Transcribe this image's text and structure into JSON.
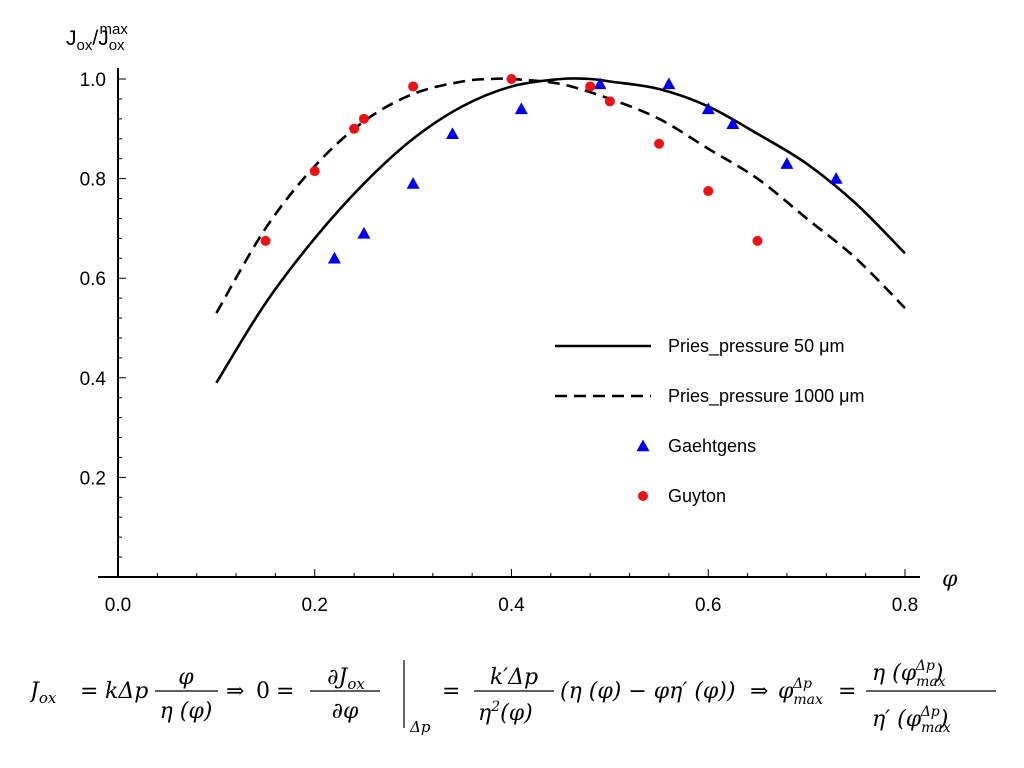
{
  "chart_data": {
    "type": "scatter",
    "ylabel": "J_ox/J_ox^max",
    "ylabel_main": "J",
    "ylabel_sub1": "ox",
    "ylabel_slash": "/",
    "ylabel_J2": "J",
    "ylabel_sub2": "ox",
    "ylabel_sup2": "max",
    "xlabel": "φ",
    "xlim": [
      0.0,
      0.8
    ],
    "ylim": [
      0.0,
      1.0
    ],
    "x_ticks": [
      "0.0",
      "0.2",
      "0.4",
      "0.6",
      "0.8"
    ],
    "y_ticks": [
      "0.2",
      "0.4",
      "0.6",
      "0.8",
      "1.0"
    ],
    "legend_position": "right",
    "series": [
      {
        "name": "Pries_pressure 50 μm",
        "style": "solid-line",
        "color": "#000000",
        "x": [
          0.1,
          0.15,
          0.2,
          0.25,
          0.3,
          0.35,
          0.4,
          0.45,
          0.48,
          0.5,
          0.55,
          0.6,
          0.65,
          0.7,
          0.75,
          0.8
        ],
        "y": [
          0.39,
          0.55,
          0.68,
          0.79,
          0.88,
          0.945,
          0.985,
          1.0,
          1.0,
          0.995,
          0.98,
          0.945,
          0.89,
          0.83,
          0.75,
          0.65
        ]
      },
      {
        "name": "Pries_pressure 1000 μm",
        "style": "dashed-line",
        "color": "#000000",
        "x": [
          0.1,
          0.15,
          0.2,
          0.25,
          0.3,
          0.35,
          0.38,
          0.4,
          0.45,
          0.5,
          0.55,
          0.6,
          0.65,
          0.7,
          0.75,
          0.8
        ],
        "y": [
          0.53,
          0.7,
          0.825,
          0.915,
          0.97,
          0.995,
          1.0,
          1.0,
          0.99,
          0.96,
          0.92,
          0.86,
          0.8,
          0.72,
          0.64,
          0.54
        ]
      },
      {
        "name": "Gaehtgens",
        "style": "triangle-markers",
        "color": "#0000ee",
        "x": [
          0.22,
          0.25,
          0.3,
          0.34,
          0.41,
          0.49,
          0.56,
          0.6,
          0.625,
          0.68,
          0.73
        ],
        "y": [
          0.64,
          0.69,
          0.79,
          0.89,
          0.94,
          0.99,
          0.99,
          0.94,
          0.91,
          0.83,
          0.8
        ]
      },
      {
        "name": "Guyton",
        "style": "circle-markers",
        "color": "#ee1111",
        "x": [
          0.15,
          0.2,
          0.24,
          0.25,
          0.3,
          0.4,
          0.48,
          0.5,
          0.55,
          0.6,
          0.65
        ],
        "y": [
          0.675,
          0.815,
          0.9,
          0.92,
          0.985,
          1.0,
          0.985,
          0.955,
          0.87,
          0.775,
          0.675
        ]
      }
    ]
  },
  "legend": [
    {
      "label": "Pries_pressure 50 μm",
      "kind": "solid"
    },
    {
      "label": "Pries_pressure 1000 μm",
      "kind": "dashed"
    },
    {
      "label": "Gaehtgens",
      "kind": "triangle"
    },
    {
      "label": "Guyton",
      "kind": "circle"
    }
  ],
  "formula": {
    "latex": "J_{ox} = k\\Delta p \\frac{\\varphi}{\\eta(\\varphi)} \\Rightarrow 0 = \\frac{\\partial J_{ox}}{\\partial \\varphi}\\Big|_{\\Delta p} = \\frac{k'\\Delta p}{\\eta^2(\\varphi)}(\\eta(\\varphi) - \\varphi\\eta'(\\varphi)) \\Rightarrow \\varphi_{max}^{\\Delta p} = \\frac{\\eta(\\varphi_{max}^{\\Delta p})}{\\eta'(\\varphi_{max}^{\\Delta p})}",
    "J": "J",
    "ox": "ox",
    "eq": "=",
    "k_dp": "kΔp",
    "phi": "φ",
    "eta_phi": "η (φ)",
    "implies": "⇒",
    "zero": "0",
    "dJ": "∂J",
    "dphi": "∂φ",
    "dp": "Δp",
    "kprime_dp": "k′Δp",
    "eta": "η",
    "sq": "2",
    "paren_phi": "(φ)",
    "middle": "(η (φ) − φη′ (φ))",
    "phi_max": "φ",
    "max": "max",
    "eta_open": "η (φ",
    "close": ")",
    "etap_open": "η′ (φ"
  }
}
